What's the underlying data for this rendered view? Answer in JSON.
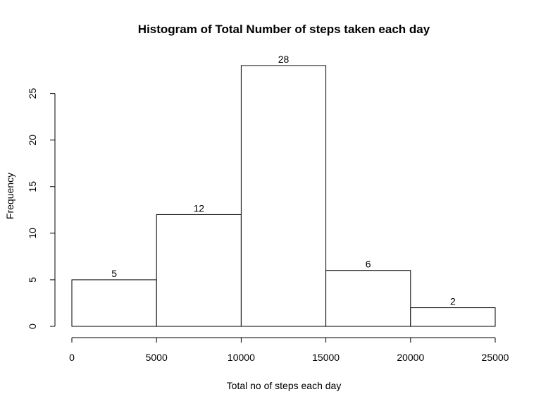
{
  "chart_data": {
    "type": "bar",
    "title": "Histogram of Total Number of steps taken each day",
    "xlabel": "Total no of steps each day",
    "ylabel": "Frequency",
    "bins": [
      {
        "start": 0,
        "end": 5000,
        "count": 5
      },
      {
        "start": 5000,
        "end": 10000,
        "count": 12
      },
      {
        "start": 10000,
        "end": 15000,
        "count": 28
      },
      {
        "start": 15000,
        "end": 20000,
        "count": 6
      },
      {
        "start": 20000,
        "end": 25000,
        "count": 2
      }
    ],
    "x_ticks": [
      0,
      5000,
      10000,
      15000,
      20000,
      25000
    ],
    "y_ticks": [
      0,
      5,
      10,
      15,
      20,
      25
    ],
    "xlim": [
      0,
      25000
    ],
    "ylim": [
      0,
      28
    ],
    "grid": false,
    "data_labels": true
  }
}
